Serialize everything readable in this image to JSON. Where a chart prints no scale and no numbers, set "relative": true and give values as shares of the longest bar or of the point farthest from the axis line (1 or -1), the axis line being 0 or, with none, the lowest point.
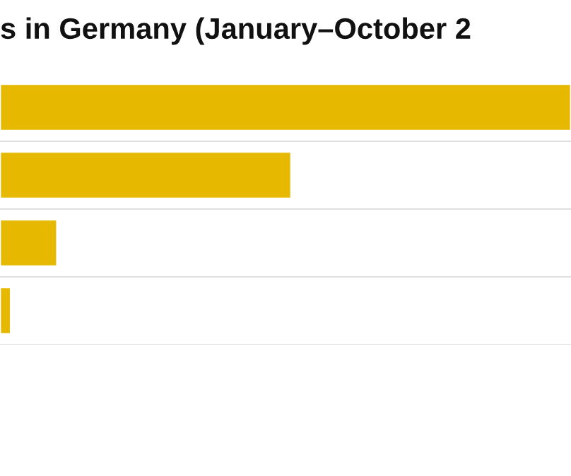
{
  "chart_data": {
    "type": "bar",
    "orientation": "horizontal",
    "relative": true,
    "title": "s in Germany (January–October 2",
    "categories": [
      null,
      null,
      null,
      null
    ],
    "values": [
      1,
      0.51,
      0.1,
      0.019
    ],
    "color": "#e6b800",
    "grid": "y"
  }
}
